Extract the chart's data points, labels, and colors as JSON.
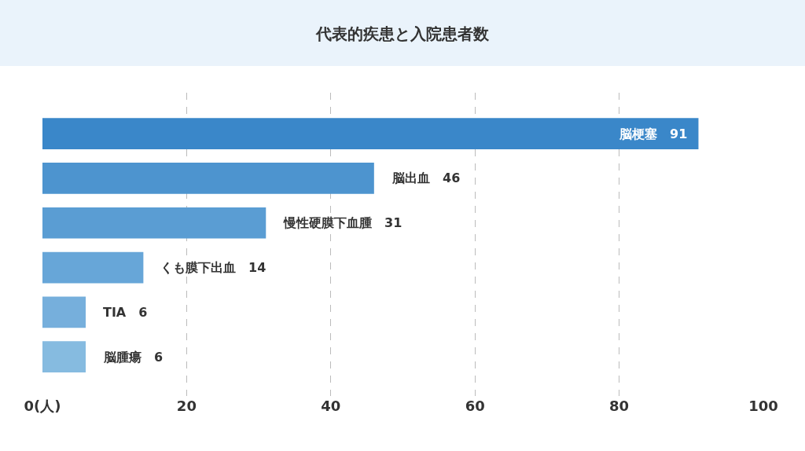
{
  "chart_data": {
    "type": "bar",
    "orientation": "horizontal",
    "title": "代表的疾患と入院患者数",
    "categories": [
      null,
      null,
      null,
      null,
      null,
      null
    ],
    "values": [
      91,
      46,
      31,
      14,
      6,
      6
    ],
    "colors": [
      "#3a87c9",
      "#4d94cf",
      "#5a9dd3",
      "#67a6d8",
      "#76afdc",
      "#86bbe0"
    ],
    "xlim": [
      0,
      100
    ],
    "xticks": [
      {
        "value": 0,
        "label": "0(人)"
      },
      20,
      40,
      60,
      80,
      100
    ],
    "value_labels": [
      "脳梗塞　91",
      "脳出血　46",
      "慢性硬膜下血腫　31",
      "くも膜下出血　14",
      "TIA　6",
      "脳腫瘍　6"
    ],
    "grid": "x",
    "tick_labels": "x",
    "legend": false
  }
}
